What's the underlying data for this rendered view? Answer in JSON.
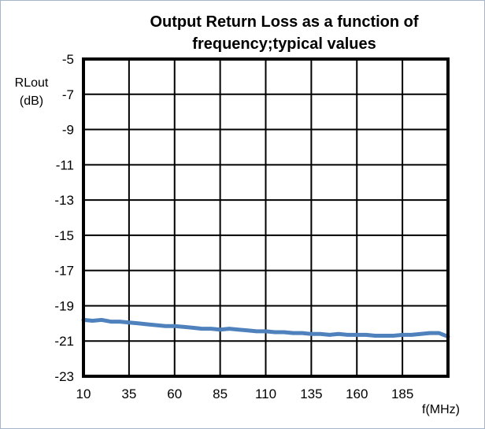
{
  "chart_data": {
    "type": "line",
    "title_line1": "Output Return Loss as a function of",
    "title_line2": "frequency;typical values",
    "ylabel_line1": "RLout",
    "ylabel_line2": "(dB)",
    "xlabel": "f(MHz)",
    "xlim": [
      10,
      210
    ],
    "ylim": [
      -23,
      -5
    ],
    "x_ticks": [
      10,
      35,
      60,
      85,
      110,
      135,
      160,
      185
    ],
    "y_ticks": [
      -5,
      -7,
      -9,
      -11,
      -13,
      -15,
      -17,
      -19,
      -21,
      -23
    ],
    "grid": true,
    "series_color": "#4f81bd",
    "series": [
      {
        "x": [
          10,
          15,
          20,
          25,
          30,
          35,
          40,
          45,
          50,
          55,
          60,
          65,
          70,
          75,
          80,
          85,
          90,
          95,
          100,
          105,
          110,
          115,
          120,
          125,
          130,
          135,
          140,
          145,
          150,
          155,
          160,
          165,
          170,
          175,
          180,
          185,
          190,
          195,
          200,
          205,
          210
        ],
        "y": [
          -19.8,
          -19.85,
          -19.8,
          -19.9,
          -19.9,
          -19.95,
          -20.0,
          -20.05,
          -20.1,
          -20.15,
          -20.15,
          -20.2,
          -20.25,
          -20.3,
          -20.3,
          -20.35,
          -20.3,
          -20.35,
          -20.4,
          -20.45,
          -20.45,
          -20.5,
          -20.5,
          -20.55,
          -20.55,
          -20.6,
          -20.6,
          -20.65,
          -20.6,
          -20.65,
          -20.65,
          -20.65,
          -20.7,
          -20.7,
          -20.7,
          -20.65,
          -20.65,
          -20.6,
          -20.55,
          -20.55,
          -20.75
        ]
      }
    ]
  }
}
